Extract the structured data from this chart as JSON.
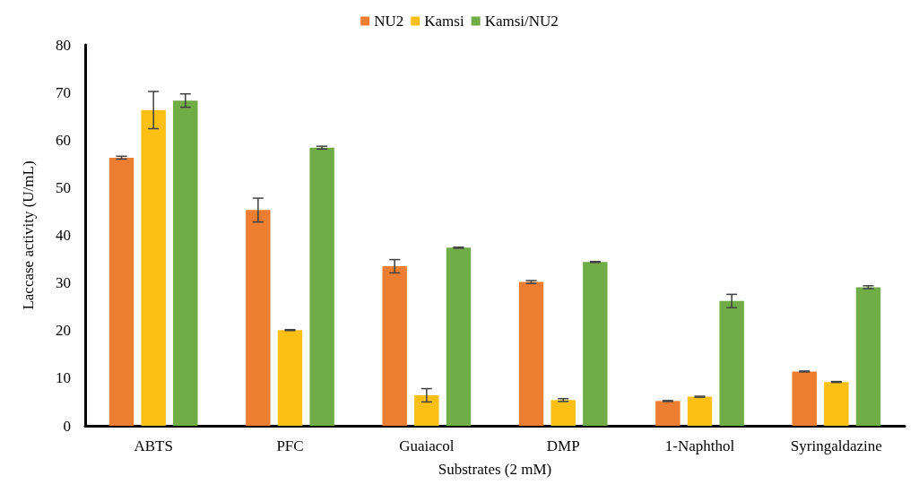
{
  "chart_data": {
    "type": "bar",
    "xlabel": "Substrates (2 mM)",
    "ylabel": "Laccase activity (U/mL)",
    "categories": [
      "ABTS",
      "PFC",
      "Guaiacol",
      "DMP",
      "1-Naphthol",
      "Syringaldazine"
    ],
    "series": [
      {
        "name": "NU2",
        "color": "#ed7d31",
        "values": [
          56.3,
          45.3,
          33.5,
          30.2,
          5.2,
          11.4
        ],
        "errors": [
          0.3,
          2.5,
          1.4,
          0.3,
          0.1,
          0.1
        ]
      },
      {
        "name": "Kamsi",
        "color": "#fcbf14",
        "values": [
          66.3,
          20.1,
          6.4,
          5.4,
          6.1,
          9.2
        ],
        "errors": [
          3.9,
          0.1,
          1.4,
          0.3,
          0.1,
          0.1
        ]
      },
      {
        "name": "Kamsi/NU2",
        "color": "#70ad47",
        "values": [
          68.3,
          58.4,
          37.4,
          34.4,
          26.2,
          29.1
        ],
        "errors": [
          1.4,
          0.3,
          0.1,
          0.1,
          1.4,
          0.3
        ]
      }
    ],
    "ylim": [
      0,
      80
    ],
    "yticks": [
      0,
      10,
      20,
      30,
      40,
      50,
      60,
      70,
      80
    ],
    "grid": false,
    "legend": "top"
  }
}
